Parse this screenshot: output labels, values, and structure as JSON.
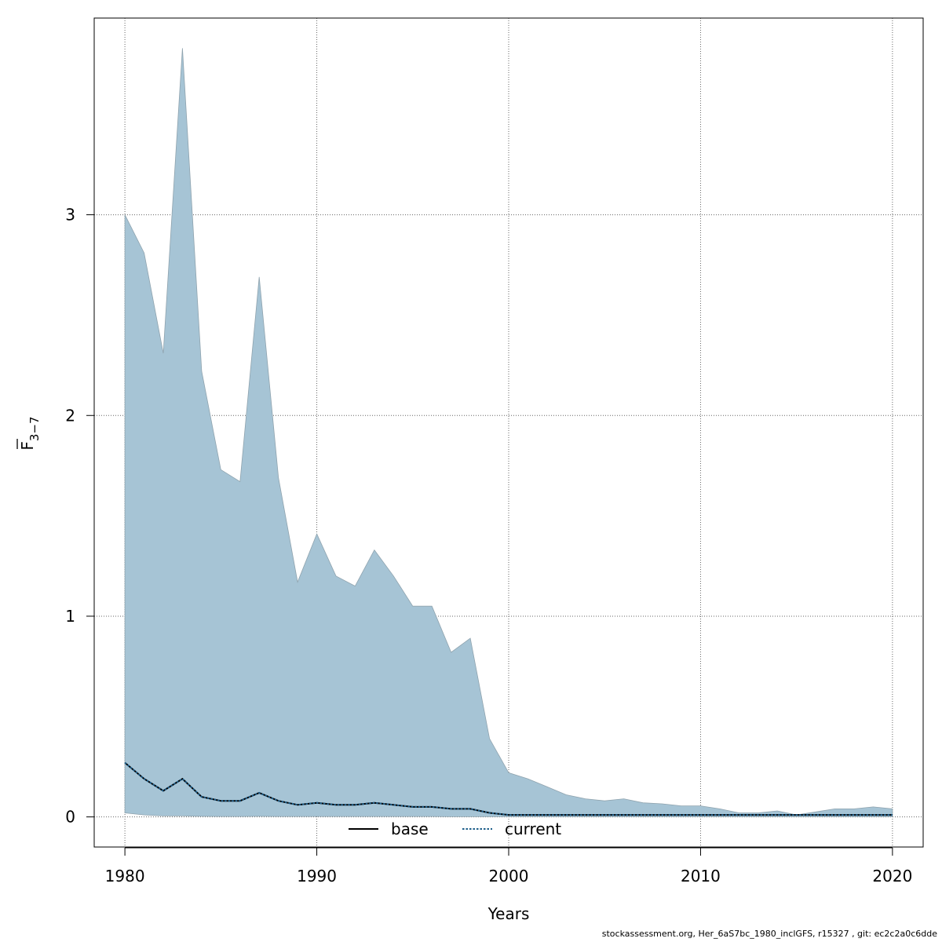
{
  "chart_data": {
    "type": "area",
    "title": "",
    "xlabel": "Years",
    "ylabel": {
      "main": "F",
      "sub": "3−7",
      "overline": true
    },
    "xlim": [
      1978.4,
      2021.6
    ],
    "ylim": [
      -0.15,
      3.98
    ],
    "xticks": [
      1980,
      1990,
      2000,
      2010,
      2020
    ],
    "yticks": [
      0,
      1,
      2,
      3
    ],
    "grid": true,
    "legend": {
      "placement": "bottom-center",
      "entries": [
        {
          "name": "base",
          "style": "solid",
          "color": "#000000"
        },
        {
          "name": "current",
          "style": "dotted",
          "color": "#1f5f8b"
        }
      ]
    },
    "colors": {
      "band_fill": "#a6c4d5",
      "band_edge": "#8fa3ae",
      "grid": "#666666"
    },
    "x": [
      1980,
      1981,
      1982,
      1983,
      1984,
      1985,
      1986,
      1987,
      1988,
      1989,
      1990,
      1991,
      1992,
      1993,
      1994,
      1995,
      1996,
      1997,
      1998,
      1999,
      2000,
      2001,
      2002,
      2003,
      2004,
      2005,
      2006,
      2007,
      2008,
      2009,
      2010,
      2011,
      2012,
      2013,
      2014,
      2015,
      2016,
      2017,
      2018,
      2019,
      2020
    ],
    "series": [
      {
        "name": "base",
        "values": [
          0.27,
          0.19,
          0.13,
          0.19,
          0.1,
          0.08,
          0.08,
          0.12,
          0.08,
          0.06,
          0.07,
          0.06,
          0.06,
          0.07,
          0.06,
          0.05,
          0.05,
          0.04,
          0.04,
          0.02,
          0.01,
          0.01,
          0.01,
          0.01,
          0.01,
          0.01,
          0.01,
          0.01,
          0.01,
          0.01,
          0.01,
          0.01,
          0.01,
          0.01,
          0.01,
          0.01,
          0.01,
          0.01,
          0.01,
          0.01,
          0.01
        ]
      },
      {
        "name": "current",
        "values": [
          0.27,
          0.19,
          0.13,
          0.19,
          0.1,
          0.08,
          0.08,
          0.12,
          0.08,
          0.06,
          0.07,
          0.06,
          0.06,
          0.07,
          0.06,
          0.05,
          0.05,
          0.04,
          0.04,
          0.02,
          0.01,
          0.01,
          0.01,
          0.01,
          0.01,
          0.01,
          0.01,
          0.01,
          0.01,
          0.01,
          0.01,
          0.01,
          0.01,
          0.01,
          0.01,
          0.01,
          0.01,
          0.01,
          0.01,
          0.01,
          0.01
        ]
      }
    ],
    "band": {
      "upper": [
        3.0,
        2.81,
        2.31,
        3.83,
        2.22,
        1.73,
        1.67,
        2.69,
        1.69,
        1.17,
        1.41,
        1.2,
        1.15,
        1.33,
        1.2,
        1.05,
        1.05,
        0.82,
        0.89,
        0.39,
        0.22,
        0.19,
        0.15,
        0.11,
        0.09,
        0.08,
        0.09,
        0.07,
        0.065,
        0.055,
        0.055,
        0.04,
        0.02,
        0.02,
        0.03,
        0.01,
        0.025,
        0.04,
        0.04,
        0.05,
        0.04
      ],
      "lower": [
        0.02,
        0.01,
        0.005,
        0.005,
        0.003,
        0.002,
        0.002,
        0.003,
        0.002,
        0.002,
        0.002,
        0.002,
        0.002,
        0.002,
        0.002,
        0.002,
        0.002,
        0.001,
        0.001,
        0.001,
        0.001,
        0.001,
        0.001,
        0.001,
        0.001,
        0.001,
        0.001,
        0.001,
        0.001,
        0.001,
        0.001,
        0.001,
        0.001,
        0.001,
        0.001,
        0.001,
        0.001,
        0.001,
        0.001,
        0.001,
        0.001
      ]
    }
  },
  "footer": "stockassessment.org, Her_6aS7bc_1980_inclGFS, r15327 , git: ec2c2a0c6dde"
}
